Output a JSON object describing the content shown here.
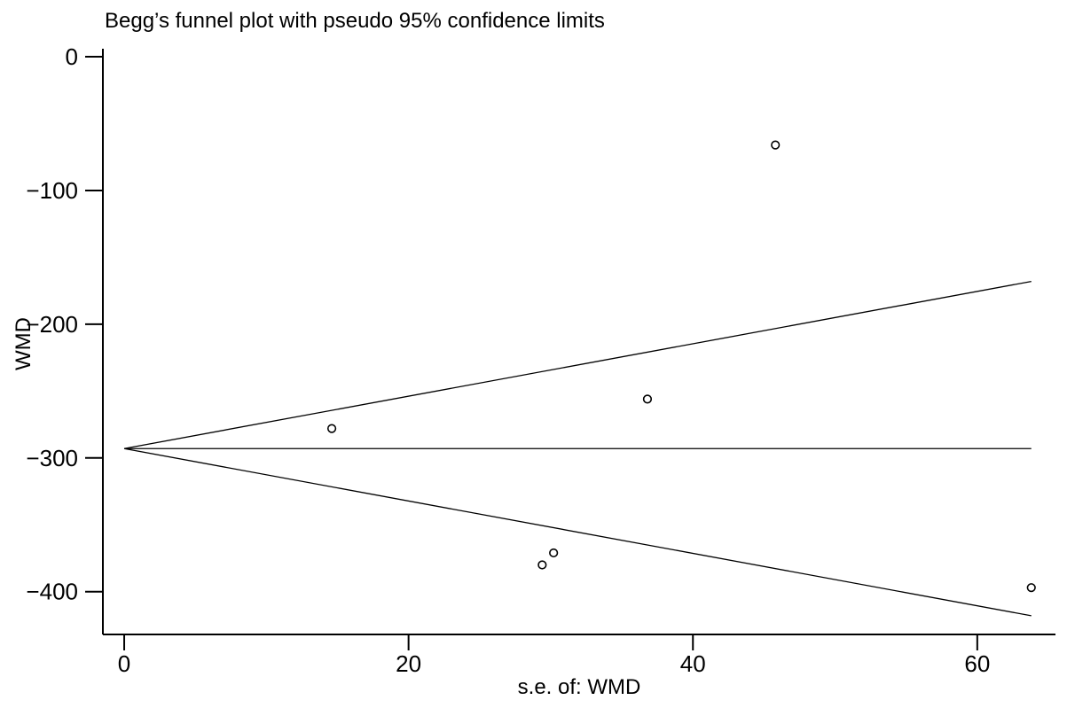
{
  "chart_data": {
    "type": "scatter",
    "title": "Begg’s funnel plot with pseudo 95% confidence limits",
    "xlabel": "s.e. of: WMD",
    "ylabel": "WMD",
    "xlim": [
      -1.5,
      65.5
    ],
    "ylim": [
      -432,
      6
    ],
    "xticks": [
      0,
      20,
      40,
      60
    ],
    "yticks": [
      0,
      -100,
      -200,
      -300,
      -400
    ],
    "grid": false,
    "legend": "none",
    "colors": {
      "line": "#000000",
      "marker": "#000000",
      "background": "#ffffff"
    },
    "pooled_estimate": -293,
    "funnel": {
      "se_max": 63.8,
      "upper": [
        [
          0,
          -293
        ],
        [
          63.8,
          -168
        ]
      ],
      "lower": [
        [
          0,
          -293
        ],
        [
          63.8,
          -418
        ]
      ],
      "center": [
        [
          0,
          -293
        ],
        [
          63.8,
          -293
        ]
      ]
    },
    "points": [
      {
        "x": 14.6,
        "y": -278
      },
      {
        "x": 29.4,
        "y": -380
      },
      {
        "x": 30.2,
        "y": -371
      },
      {
        "x": 36.8,
        "y": -256
      },
      {
        "x": 45.8,
        "y": -66
      },
      {
        "x": 63.8,
        "y": -397
      }
    ]
  }
}
